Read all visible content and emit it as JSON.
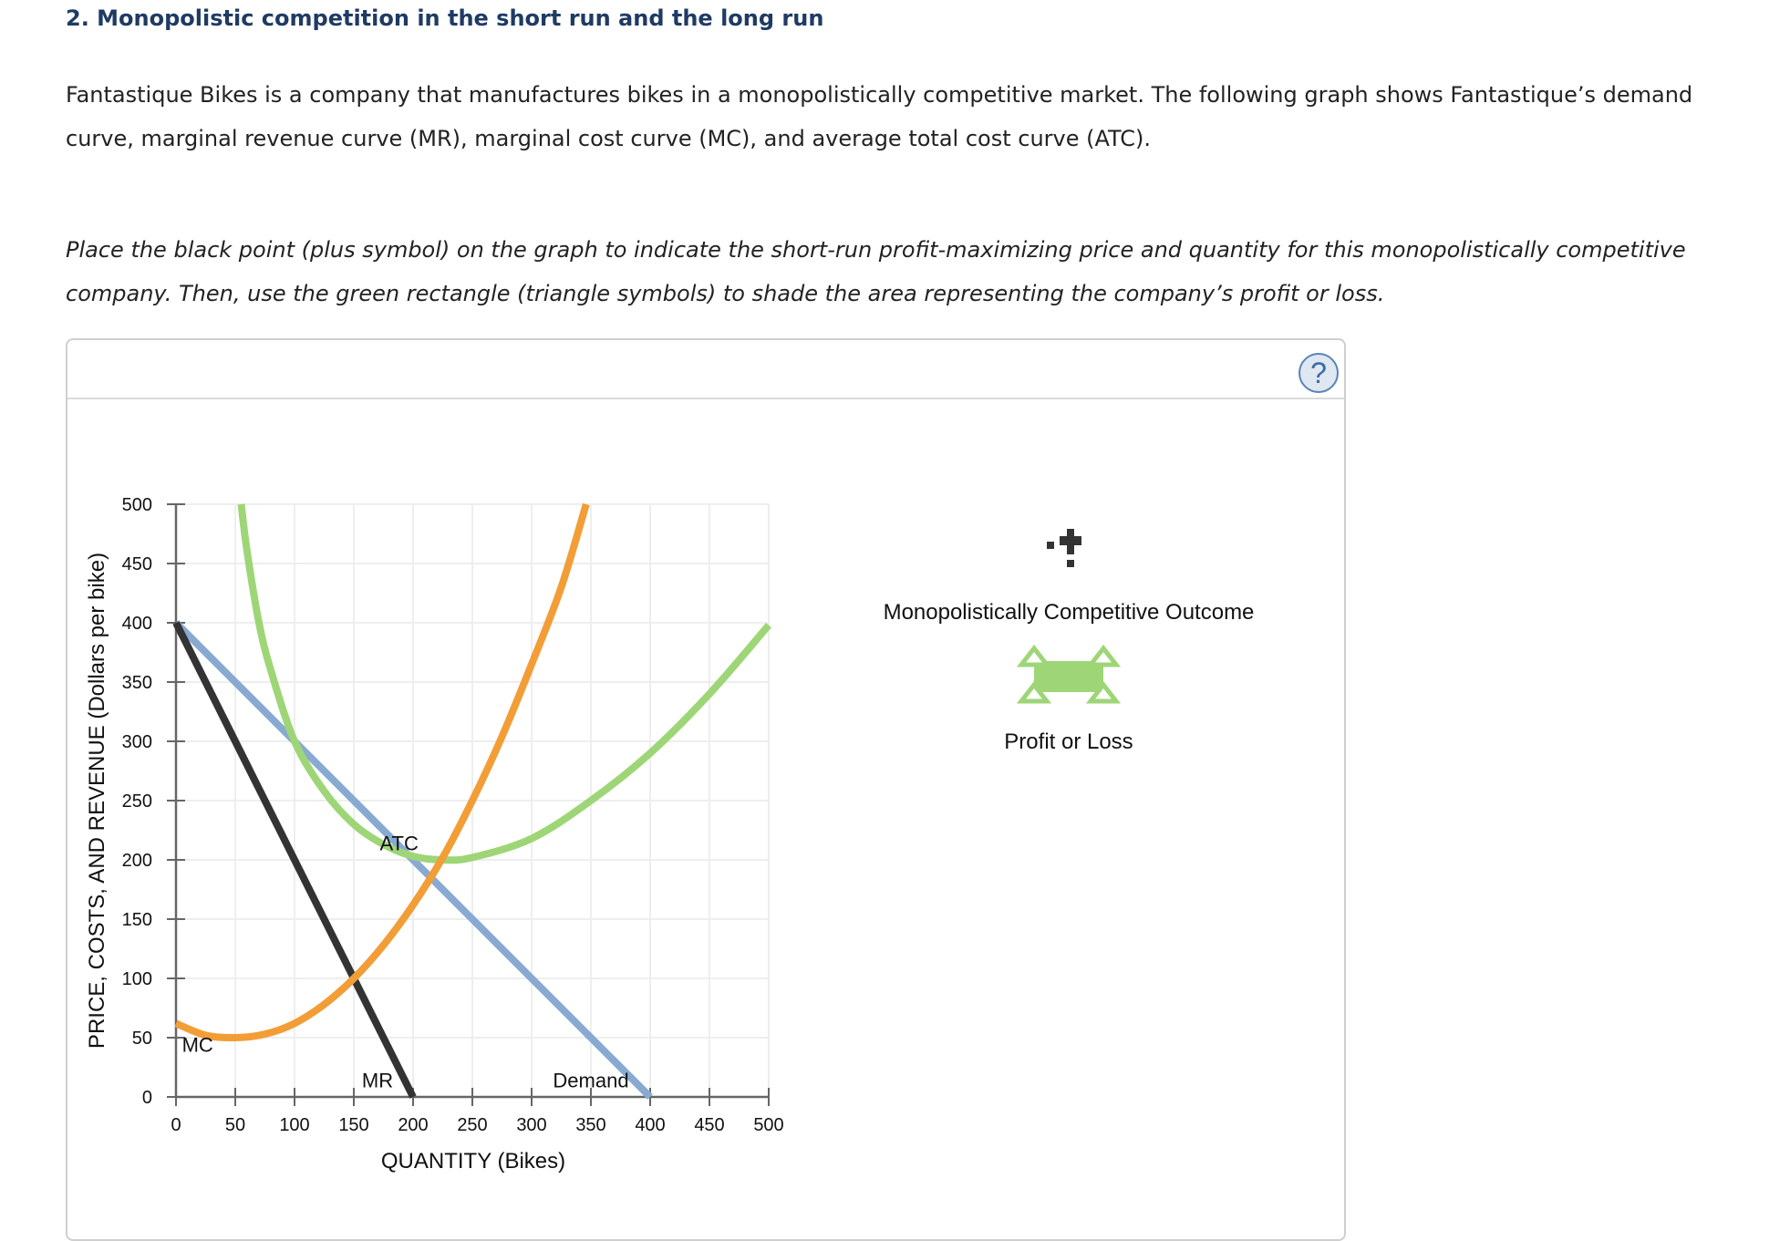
{
  "page": {
    "title": "2. Monopolistic competition in the short run and the long run",
    "intro": "Fantastique Bikes is a company that manufactures bikes in a monopolistically competitive market. The following graph shows Fantastique’s demand curve, marginal revenue curve (MR), marginal cost curve (MC), and average total cost curve (ATC).",
    "instructions": "Place the black point (plus symbol) on the graph to indicate the short-run profit-maximizing price and quantity for this monopolistically competitive company. Then, use the green rectangle (triangle symbols) to shade the area representing the company’s profit or loss."
  },
  "panel": {
    "help_icon": "?"
  },
  "legend": {
    "point_tool": {
      "label": "Monopolistically Competitive Outcome",
      "icon": "black-plus-point"
    },
    "area_tool": {
      "label": "Profit or Loss",
      "icon": "green-rectangle-triangles",
      "color": "#9ed677"
    }
  },
  "colors": {
    "demand": "#88aad2",
    "mr": "#333333",
    "mc": "#f39d37",
    "atc": "#9ed677",
    "grid": "#eeeeee",
    "axis": "#666666",
    "title": "#1f3b63"
  },
  "chart_data": {
    "type": "line",
    "title": "",
    "xlabel": "QUANTITY (Bikes)",
    "ylabel": "PRICE, COSTS, AND REVENUE (Dollars per bike)",
    "xlim": [
      0,
      500
    ],
    "ylim": [
      0,
      500
    ],
    "x_ticks": [
      "0",
      "50",
      "100",
      "150",
      "200",
      "250",
      "300",
      "350",
      "400",
      "450",
      "500"
    ],
    "y_ticks": [
      "0",
      "50",
      "100",
      "150",
      "200",
      "250",
      "300",
      "350",
      "400",
      "450",
      "500"
    ],
    "grid": true,
    "series": [
      {
        "name": "Demand",
        "label": "Demand",
        "points": [
          [
            0,
            400
          ],
          [
            400,
            0
          ]
        ]
      },
      {
        "name": "MR",
        "label": "MR",
        "points": [
          [
            0,
            400
          ],
          [
            200,
            0
          ]
        ]
      },
      {
        "name": "MC",
        "label": "MC",
        "points": [
          [
            0,
            62
          ],
          [
            25,
            52
          ],
          [
            50,
            50
          ],
          [
            75,
            53
          ],
          [
            100,
            62
          ],
          [
            125,
            78
          ],
          [
            150,
            100
          ],
          [
            175,
            128
          ],
          [
            200,
            162
          ],
          [
            225,
            202
          ],
          [
            250,
            250
          ],
          [
            275,
            304
          ],
          [
            300,
            365
          ],
          [
            325,
            430
          ],
          [
            346,
            500
          ]
        ]
      },
      {
        "name": "ATC",
        "label": "ATC",
        "points": [
          [
            55,
            500
          ],
          [
            60,
            460
          ],
          [
            70,
            400
          ],
          [
            80,
            360
          ],
          [
            100,
            300
          ],
          [
            125,
            258
          ],
          [
            150,
            230
          ],
          [
            175,
            213
          ],
          [
            200,
            203
          ],
          [
            225,
            200
          ],
          [
            250,
            202
          ],
          [
            300,
            218
          ],
          [
            350,
            250
          ],
          [
            400,
            290
          ],
          [
            450,
            340
          ],
          [
            500,
            398
          ]
        ]
      }
    ],
    "axis_labels": {
      "x": "QUANTITY (Bikes)",
      "y": "PRICE, COSTS, AND REVENUE (Dollars per bike)"
    }
  }
}
